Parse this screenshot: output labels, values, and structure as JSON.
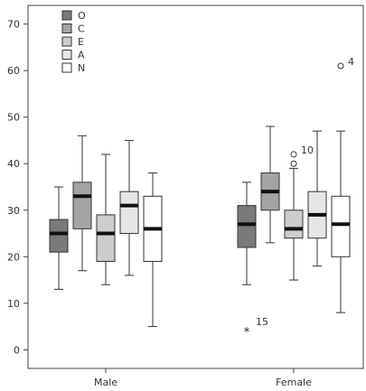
{
  "chart_data": {
    "type": "box",
    "title": "",
    "xlabel": "",
    "ylabel": "",
    "categories": [
      "Male",
      "Female"
    ],
    "ylim": [
      -4,
      74
    ],
    "yticks": [
      0,
      10,
      20,
      30,
      40,
      50,
      60,
      70
    ],
    "legend_position": "top-left",
    "grid": false,
    "series": [
      {
        "name": "O",
        "color": "#7a7a7a",
        "boxes": [
          {
            "whisker_low": 13,
            "q1": 21,
            "median": 25,
            "q3": 28,
            "whisker_high": 35
          },
          {
            "whisker_low": 14,
            "q1": 22,
            "median": 27,
            "q3": 31,
            "whisker_high": 36
          }
        ]
      },
      {
        "name": "C",
        "color": "#a3a3a3",
        "boxes": [
          {
            "whisker_low": 17,
            "q1": 26,
            "median": 33,
            "q3": 36,
            "whisker_high": 46
          },
          {
            "whisker_low": 23,
            "q1": 30,
            "median": 34,
            "q3": 38,
            "whisker_high": 48
          }
        ]
      },
      {
        "name": "E",
        "color": "#cdcdcd",
        "boxes": [
          {
            "whisker_low": 14,
            "q1": 19,
            "median": 25,
            "q3": 29,
            "whisker_high": 42
          },
          {
            "whisker_low": 15,
            "q1": 24,
            "median": 26,
            "q3": 30,
            "whisker_high": 39
          }
        ]
      },
      {
        "name": "A",
        "color": "#e6e6e6",
        "boxes": [
          {
            "whisker_low": 16,
            "q1": 25,
            "median": 31,
            "q3": 34,
            "whisker_high": 45
          },
          {
            "whisker_low": 18,
            "q1": 24,
            "median": 29,
            "q3": 34,
            "whisker_high": 47
          }
        ]
      },
      {
        "name": "N",
        "color": "#ffffff",
        "boxes": [
          {
            "whisker_low": 5,
            "q1": 19,
            "median": 26,
            "q3": 33,
            "whisker_high": 38
          },
          {
            "whisker_low": 8,
            "q1": 20,
            "median": 27,
            "q3": 33,
            "whisker_high": 47
          }
        ]
      }
    ],
    "outliers": [
      {
        "category": "Female",
        "series": "E",
        "value": 42,
        "marker": "circle",
        "label": "10"
      },
      {
        "category": "Female",
        "series": "E",
        "value": 40,
        "marker": "circle",
        "label": ""
      },
      {
        "category": "Female",
        "series": "N",
        "value": 61,
        "marker": "circle",
        "label": "4"
      },
      {
        "category": "Female",
        "series": "O",
        "value": 4,
        "marker": "star",
        "label": "15"
      }
    ]
  }
}
